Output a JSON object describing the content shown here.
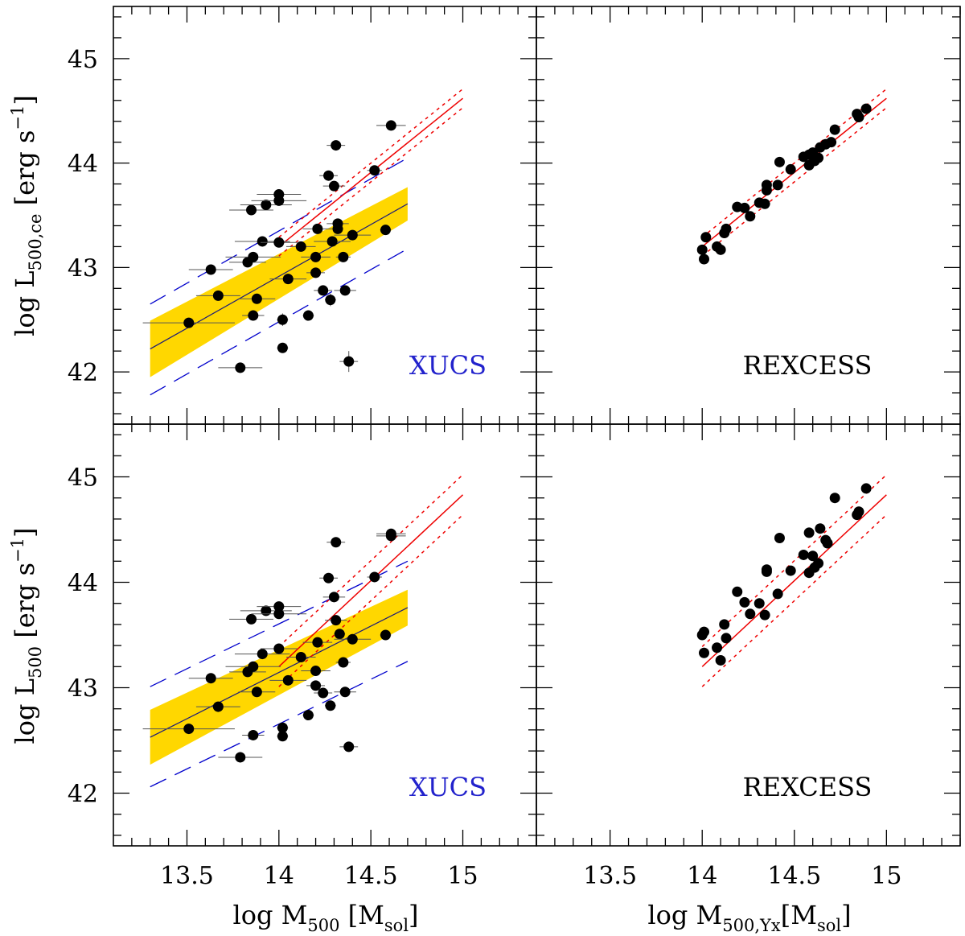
{
  "colors": {
    "band": "#FFD700",
    "fit_line": "#1a1a7a",
    "dashed": "#0000CC",
    "red": "#EE0000",
    "points": "#000000",
    "errbar": "#555555",
    "xucs_label": "#2222CC",
    "rexcess_label": "#000000"
  },
  "axes": {
    "x_ticks": [
      "13.5",
      "14",
      "14.5",
      "15"
    ],
    "y_ticks": [
      "42",
      "43",
      "44",
      "45"
    ],
    "xlabel_left": {
      "pre": "log  M",
      "sub": "500",
      "mid": " [M",
      "sub2": "sol",
      "post": "]"
    },
    "xlabel_right": {
      "pre": "log  M",
      "sub": "500,Yx",
      "mid": "[M",
      "sub2": "sol",
      "post": "]"
    },
    "ylabel_top": {
      "pre": "log  L",
      "sub": "500,ce",
      "post": " [erg  s",
      "sup": "−1",
      "end": "]"
    },
    "ylabel_bottom": {
      "pre": "log  L",
      "sub": "500",
      "post": " [erg  s",
      "sup": "−1",
      "end": "]"
    }
  },
  "chart_data": [
    {
      "type": "scatter",
      "panel": "top-left",
      "label": "XUCS",
      "xlim": [
        13.1,
        15.4
      ],
      "ylim": [
        41.5,
        45.5
      ],
      "band": {
        "x": [
          13.3,
          14.7
        ],
        "center": [
          42.22,
          43.61
        ],
        "halfwidth_low": 0.27,
        "halfwidth_high": 0.16
      },
      "fit_line": {
        "x": [
          13.3,
          14.7
        ],
        "y": [
          42.22,
          43.61
        ]
      },
      "dashed_upper": {
        "x": [
          13.3,
          14.7
        ],
        "y": [
          42.65,
          44.05
        ]
      },
      "dashed_lower": {
        "x": [
          13.3,
          14.7
        ],
        "y": [
          41.78,
          43.18
        ]
      },
      "red_line": {
        "x": [
          14.0,
          15.0
        ],
        "y": [
          43.2,
          44.62
        ]
      },
      "red_dotted_upper": {
        "x": [
          14.0,
          15.0
        ],
        "y": [
          43.29,
          44.71
        ]
      },
      "red_dotted_lower": {
        "x": [
          14.0,
          15.0
        ],
        "y": [
          43.11,
          44.53
        ]
      },
      "points": [
        {
          "x": 13.51,
          "y": 42.47,
          "xerr": 0.25,
          "yerr": 0.0
        },
        {
          "x": 13.63,
          "y": 42.98,
          "xerr": 0.12,
          "yerr": 0.0
        },
        {
          "x": 13.67,
          "y": 42.73,
          "xerr": 0.12,
          "yerr": 0.0
        },
        {
          "x": 13.79,
          "y": 42.04,
          "xerr": 0.12,
          "yerr": 0.05
        },
        {
          "x": 13.83,
          "y": 43.05,
          "xerr": 0.1,
          "yerr": 0.0
        },
        {
          "x": 13.85,
          "y": 43.55,
          "xerr": 0.12,
          "yerr": 0.0
        },
        {
          "x": 13.86,
          "y": 43.1,
          "xerr": 0.15,
          "yerr": 0.0
        },
        {
          "x": 13.86,
          "y": 42.54,
          "xerr": 0.06,
          "yerr": 0.0
        },
        {
          "x": 13.88,
          "y": 42.7,
          "xerr": 0.1,
          "yerr": 0.0
        },
        {
          "x": 13.91,
          "y": 43.25,
          "xerr": 0.15,
          "yerr": 0.0
        },
        {
          "x": 13.93,
          "y": 43.6,
          "xerr": 0.14,
          "yerr": 0.0
        },
        {
          "x": 14.0,
          "y": 43.7,
          "xerr": 0.12,
          "yerr": 0.0
        },
        {
          "x": 14.0,
          "y": 43.64,
          "xerr": 0.15,
          "yerr": 0.0
        },
        {
          "x": 14.0,
          "y": 43.24,
          "xerr": 0.1,
          "yerr": 0.0
        },
        {
          "x": 14.02,
          "y": 42.5,
          "xerr": 0.03,
          "yerr": 0.06
        },
        {
          "x": 14.02,
          "y": 42.23,
          "xerr": 0.03,
          "yerr": 0.0
        },
        {
          "x": 14.05,
          "y": 42.89,
          "xerr": 0.1,
          "yerr": 0.0
        },
        {
          "x": 14.12,
          "y": 43.2,
          "xerr": 0.08,
          "yerr": 0.0
        },
        {
          "x": 14.16,
          "y": 42.54,
          "xerr": 0.03,
          "yerr": 0.0
        },
        {
          "x": 14.2,
          "y": 43.1,
          "xerr": 0.08,
          "yerr": 0.0
        },
        {
          "x": 14.2,
          "y": 42.95,
          "xerr": 0.05,
          "yerr": 0.0
        },
        {
          "x": 14.21,
          "y": 43.37,
          "xerr": 0.08,
          "yerr": 0.0
        },
        {
          "x": 14.24,
          "y": 42.78,
          "xerr": 0.05,
          "yerr": 0.0
        },
        {
          "x": 14.27,
          "y": 43.88,
          "xerr": 0.05,
          "yerr": 0.0
        },
        {
          "x": 14.28,
          "y": 42.69,
          "xerr": 0.03,
          "yerr": 0.06
        },
        {
          "x": 14.29,
          "y": 43.25,
          "xerr": 0.1,
          "yerr": 0.0
        },
        {
          "x": 14.3,
          "y": 43.78,
          "xerr": 0.06,
          "yerr": 0.0
        },
        {
          "x": 14.31,
          "y": 44.17,
          "xerr": 0.05,
          "yerr": 0.0
        },
        {
          "x": 14.32,
          "y": 43.42,
          "xerr": 0.06,
          "yerr": 0.0
        },
        {
          "x": 14.32,
          "y": 43.37,
          "xerr": 0.03,
          "yerr": 0.0
        },
        {
          "x": 14.35,
          "y": 43.1,
          "xerr": 0.04,
          "yerr": 0.0
        },
        {
          "x": 14.36,
          "y": 42.78,
          "xerr": 0.06,
          "yerr": 0.0
        },
        {
          "x": 14.38,
          "y": 42.1,
          "xerr": 0.05,
          "yerr": 0.1
        },
        {
          "x": 14.4,
          "y": 43.31,
          "xerr": 0.1,
          "yerr": 0.0
        },
        {
          "x": 14.52,
          "y": 43.93,
          "xerr": 0.04,
          "yerr": 0.0
        },
        {
          "x": 14.58,
          "y": 43.36,
          "xerr": 0.03,
          "yerr": 0.0
        },
        {
          "x": 14.61,
          "y": 44.36,
          "xerr": 0.08,
          "yerr": 0.0
        }
      ]
    },
    {
      "type": "scatter",
      "panel": "top-right",
      "label": "REXCESS",
      "xlim": [
        13.1,
        15.4
      ],
      "ylim": [
        41.5,
        45.5
      ],
      "red_line": {
        "x": [
          14.0,
          15.0
        ],
        "y": [
          43.2,
          44.62
        ]
      },
      "red_dotted_upper": {
        "x": [
          14.0,
          15.0
        ],
        "y": [
          43.29,
          44.71
        ]
      },
      "red_dotted_lower": {
        "x": [
          14.0,
          15.0
        ],
        "y": [
          43.11,
          44.53
        ]
      },
      "points": [
        {
          "x": 14.0,
          "y": 43.17
        },
        {
          "x": 14.01,
          "y": 43.08
        },
        {
          "x": 14.02,
          "y": 43.29
        },
        {
          "x": 14.08,
          "y": 43.2
        },
        {
          "x": 14.1,
          "y": 43.17
        },
        {
          "x": 14.12,
          "y": 43.33
        },
        {
          "x": 14.13,
          "y": 43.37
        },
        {
          "x": 14.19,
          "y": 43.58
        },
        {
          "x": 14.23,
          "y": 43.57
        },
        {
          "x": 14.26,
          "y": 43.49
        },
        {
          "x": 14.31,
          "y": 43.62
        },
        {
          "x": 14.34,
          "y": 43.61
        },
        {
          "x": 14.35,
          "y": 43.74
        },
        {
          "x": 14.35,
          "y": 43.79
        },
        {
          "x": 14.41,
          "y": 43.79
        },
        {
          "x": 14.42,
          "y": 44.01
        },
        {
          "x": 14.48,
          "y": 43.94
        },
        {
          "x": 14.55,
          "y": 44.06
        },
        {
          "x": 14.58,
          "y": 44.08
        },
        {
          "x": 14.58,
          "y": 43.98
        },
        {
          "x": 14.6,
          "y": 44.1
        },
        {
          "x": 14.61,
          "y": 44.02
        },
        {
          "x": 14.63,
          "y": 44.05
        },
        {
          "x": 14.64,
          "y": 44.15
        },
        {
          "x": 14.67,
          "y": 44.18
        },
        {
          "x": 14.7,
          "y": 44.2
        },
        {
          "x": 14.72,
          "y": 44.32
        },
        {
          "x": 14.84,
          "y": 44.47
        },
        {
          "x": 14.85,
          "y": 44.44
        },
        {
          "x": 14.89,
          "y": 44.52
        }
      ]
    },
    {
      "type": "scatter",
      "panel": "bottom-left",
      "label": "XUCS",
      "xlim": [
        13.1,
        15.4
      ],
      "ylim": [
        41.5,
        45.5
      ],
      "band": {
        "x": [
          13.3,
          14.7
        ],
        "center": [
          42.53,
          43.76
        ],
        "halfwidth_low": 0.26,
        "halfwidth_high": 0.17
      },
      "fit_line": {
        "x": [
          13.3,
          14.7
        ],
        "y": [
          42.53,
          43.76
        ]
      },
      "dashed_upper": {
        "x": [
          13.3,
          14.7
        ],
        "y": [
          43.01,
          44.2
        ]
      },
      "dashed_lower": {
        "x": [
          13.3,
          14.7
        ],
        "y": [
          42.06,
          43.25
        ]
      },
      "red_line": {
        "x": [
          14.0,
          15.0
        ],
        "y": [
          43.2,
          44.83
        ]
      },
      "red_dotted_upper": {
        "x": [
          14.0,
          15.0
        ],
        "y": [
          43.39,
          45.02
        ]
      },
      "red_dotted_lower": {
        "x": [
          14.0,
          15.0
        ],
        "y": [
          43.01,
          44.64
        ]
      },
      "points": [
        {
          "x": 13.51,
          "y": 42.61,
          "xerr": 0.25,
          "yerr": 0.0
        },
        {
          "x": 13.63,
          "y": 43.09,
          "xerr": 0.12,
          "yerr": 0.0
        },
        {
          "x": 13.67,
          "y": 42.82,
          "xerr": 0.12,
          "yerr": 0.0
        },
        {
          "x": 13.79,
          "y": 42.34,
          "xerr": 0.12,
          "yerr": 0.05
        },
        {
          "x": 13.83,
          "y": 43.15,
          "xerr": 0.1,
          "yerr": 0.0
        },
        {
          "x": 13.85,
          "y": 43.65,
          "xerr": 0.12,
          "yerr": 0.0
        },
        {
          "x": 13.86,
          "y": 43.2,
          "xerr": 0.15,
          "yerr": 0.0
        },
        {
          "x": 13.86,
          "y": 42.55,
          "xerr": 0.06,
          "yerr": 0.0
        },
        {
          "x": 13.88,
          "y": 42.96,
          "xerr": 0.1,
          "yerr": 0.0
        },
        {
          "x": 13.91,
          "y": 43.32,
          "xerr": 0.15,
          "yerr": 0.0
        },
        {
          "x": 13.93,
          "y": 43.73,
          "xerr": 0.14,
          "yerr": 0.0
        },
        {
          "x": 14.0,
          "y": 43.77,
          "xerr": 0.12,
          "yerr": 0.0
        },
        {
          "x": 14.0,
          "y": 43.7,
          "xerr": 0.15,
          "yerr": 0.0
        },
        {
          "x": 14.0,
          "y": 43.37,
          "xerr": 0.1,
          "yerr": 0.0
        },
        {
          "x": 14.02,
          "y": 42.62,
          "xerr": 0.03,
          "yerr": 0.0
        },
        {
          "x": 14.02,
          "y": 42.54,
          "xerr": 0.03,
          "yerr": 0.0
        },
        {
          "x": 14.05,
          "y": 43.07,
          "xerr": 0.1,
          "yerr": 0.0
        },
        {
          "x": 14.12,
          "y": 43.29,
          "xerr": 0.08,
          "yerr": 0.0
        },
        {
          "x": 14.16,
          "y": 42.74,
          "xerr": 0.03,
          "yerr": 0.0
        },
        {
          "x": 14.2,
          "y": 43.16,
          "xerr": 0.08,
          "yerr": 0.0
        },
        {
          "x": 14.2,
          "y": 43.02,
          "xerr": 0.05,
          "yerr": 0.0
        },
        {
          "x": 14.21,
          "y": 43.43,
          "xerr": 0.08,
          "yerr": 0.0
        },
        {
          "x": 14.24,
          "y": 42.95,
          "xerr": 0.05,
          "yerr": 0.0
        },
        {
          "x": 14.27,
          "y": 44.04,
          "xerr": 0.05,
          "yerr": 0.0
        },
        {
          "x": 14.28,
          "y": 42.83,
          "xerr": 0.03,
          "yerr": 0.0
        },
        {
          "x": 14.3,
          "y": 43.86,
          "xerr": 0.06,
          "yerr": 0.0
        },
        {
          "x": 14.31,
          "y": 44.38,
          "xerr": 0.05,
          "yerr": 0.0
        },
        {
          "x": 14.31,
          "y": 43.64,
          "xerr": 0.06,
          "yerr": 0.0
        },
        {
          "x": 14.33,
          "y": 43.51,
          "xerr": 0.03,
          "yerr": 0.0
        },
        {
          "x": 14.35,
          "y": 43.24,
          "xerr": 0.04,
          "yerr": 0.0
        },
        {
          "x": 14.36,
          "y": 42.96,
          "xerr": 0.06,
          "yerr": 0.0
        },
        {
          "x": 14.38,
          "y": 42.44,
          "xerr": 0.05,
          "yerr": 0.0
        },
        {
          "x": 14.4,
          "y": 43.46,
          "xerr": 0.1,
          "yerr": 0.0
        },
        {
          "x": 14.52,
          "y": 44.05,
          "xerr": 0.04,
          "yerr": 0.0
        },
        {
          "x": 14.58,
          "y": 43.5,
          "xerr": 0.03,
          "yerr": 0.0
        },
        {
          "x": 14.61,
          "y": 44.46,
          "xerr": 0.08,
          "yerr": 0.0
        },
        {
          "x": 14.61,
          "y": 44.44,
          "xerr": 0.08,
          "yerr": 0.0
        }
      ]
    },
    {
      "type": "scatter",
      "panel": "bottom-right",
      "label": "REXCESS",
      "xlim": [
        13.1,
        15.4
      ],
      "ylim": [
        41.5,
        45.5
      ],
      "red_line": {
        "x": [
          14.0,
          15.0
        ],
        "y": [
          43.2,
          44.83
        ]
      },
      "red_dotted_upper": {
        "x": [
          14.0,
          15.0
        ],
        "y": [
          43.39,
          45.02
        ]
      },
      "red_dotted_lower": {
        "x": [
          14.0,
          15.0
        ],
        "y": [
          43.01,
          44.64
        ]
      },
      "points": [
        {
          "x": 14.0,
          "y": 43.5
        },
        {
          "x": 14.01,
          "y": 43.53
        },
        {
          "x": 14.01,
          "y": 43.33
        },
        {
          "x": 14.08,
          "y": 43.38
        },
        {
          "x": 14.1,
          "y": 43.26
        },
        {
          "x": 14.12,
          "y": 43.6
        },
        {
          "x": 14.13,
          "y": 43.47
        },
        {
          "x": 14.19,
          "y": 43.91
        },
        {
          "x": 14.23,
          "y": 43.81
        },
        {
          "x": 14.26,
          "y": 43.7
        },
        {
          "x": 14.31,
          "y": 43.8
        },
        {
          "x": 14.34,
          "y": 43.69
        },
        {
          "x": 14.35,
          "y": 44.1
        },
        {
          "x": 14.35,
          "y": 44.12
        },
        {
          "x": 14.41,
          "y": 43.89
        },
        {
          "x": 14.42,
          "y": 44.42
        },
        {
          "x": 14.48,
          "y": 44.11
        },
        {
          "x": 14.55,
          "y": 44.26
        },
        {
          "x": 14.58,
          "y": 44.47
        },
        {
          "x": 14.58,
          "y": 44.09
        },
        {
          "x": 14.6,
          "y": 44.25
        },
        {
          "x": 14.61,
          "y": 44.14
        },
        {
          "x": 14.63,
          "y": 44.18
        },
        {
          "x": 14.64,
          "y": 44.51
        },
        {
          "x": 14.67,
          "y": 44.4
        },
        {
          "x": 14.68,
          "y": 44.37
        },
        {
          "x": 14.72,
          "y": 44.8
        },
        {
          "x": 14.84,
          "y": 44.64
        },
        {
          "x": 14.85,
          "y": 44.67
        },
        {
          "x": 14.89,
          "y": 44.89
        }
      ]
    }
  ]
}
